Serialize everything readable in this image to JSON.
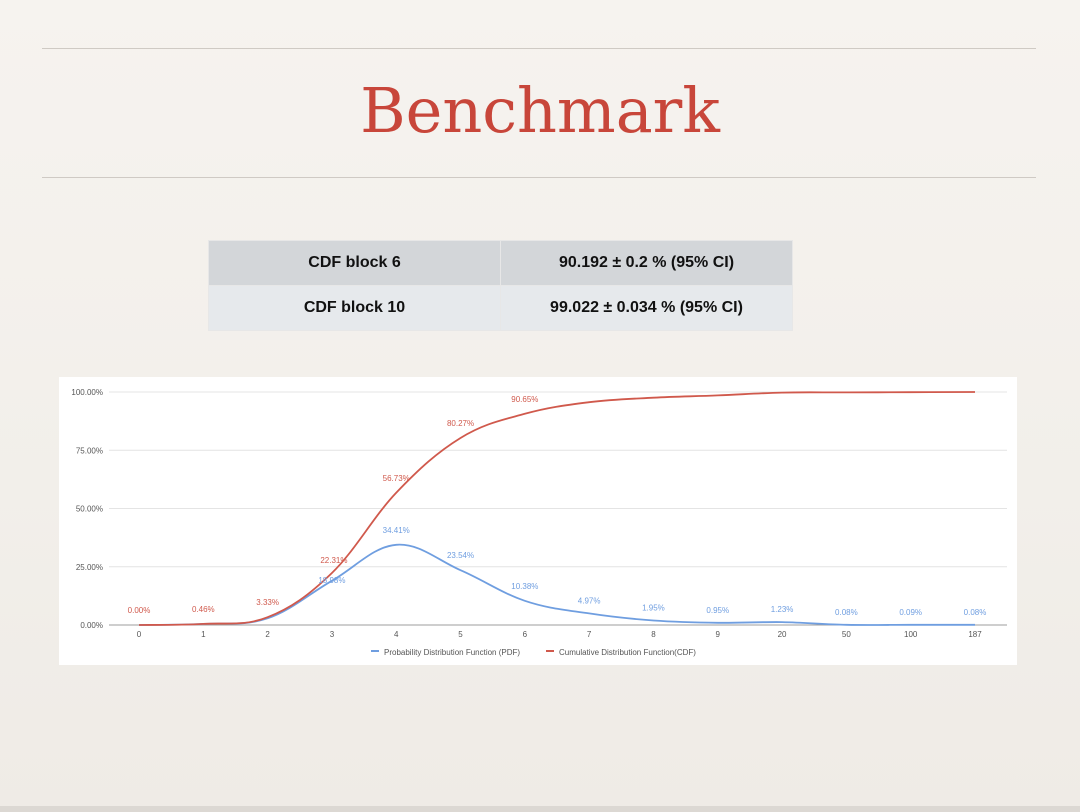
{
  "title": "Benchmark",
  "ci_table": {
    "rows": [
      {
        "label": "CDF block 6",
        "value": "90.192 ± 0.2 % (95% CI)"
      },
      {
        "label": "CDF block 10",
        "value": "99.022 ± 0.034 % (95% CI)"
      }
    ]
  },
  "chart_data": {
    "type": "line",
    "categories": [
      "0",
      "1",
      "2",
      "3",
      "4",
      "5",
      "6",
      "7",
      "8",
      "9",
      "20",
      "50",
      "100",
      "187"
    ],
    "ylim": [
      0,
      100
    ],
    "y_ticks": [
      "0.00%",
      "25.00%",
      "50.00%",
      "75.00%",
      "100.00%"
    ],
    "grid": true,
    "legend_position": "bottom",
    "series": [
      {
        "name": "Probability Distribution Function (PDF)",
        "color": "#6f9ee0",
        "values": [
          0.0,
          0.46,
          2.87,
          18.98,
          34.41,
          23.54,
          10.38,
          4.97,
          1.95,
          0.95,
          1.23,
          0.08,
          0.09,
          0.08
        ],
        "labels": {
          "3": "18.98%",
          "4": "34.41%",
          "5": "23.54%",
          "6": "10.38%",
          "7": "4.97%",
          "8": "1.95%",
          "9": "0.95%",
          "10": "1.23%",
          "11": "0.08%",
          "12": "0.09%",
          "13": "0.08%"
        }
      },
      {
        "name": "Cumulative Distribution Function(CDF)",
        "color": "#d0594c",
        "values": [
          0.0,
          0.46,
          3.33,
          22.31,
          56.73,
          80.27,
          90.65,
          95.62,
          97.57,
          98.52,
          99.75,
          99.83,
          99.92,
          100.0
        ],
        "labels": {
          "0": "0.00%",
          "1": "0.46%",
          "2": "3.33%",
          "3": "22.31%",
          "4": "56.73%",
          "5": "80.27%",
          "6": "90.65%"
        }
      }
    ]
  }
}
